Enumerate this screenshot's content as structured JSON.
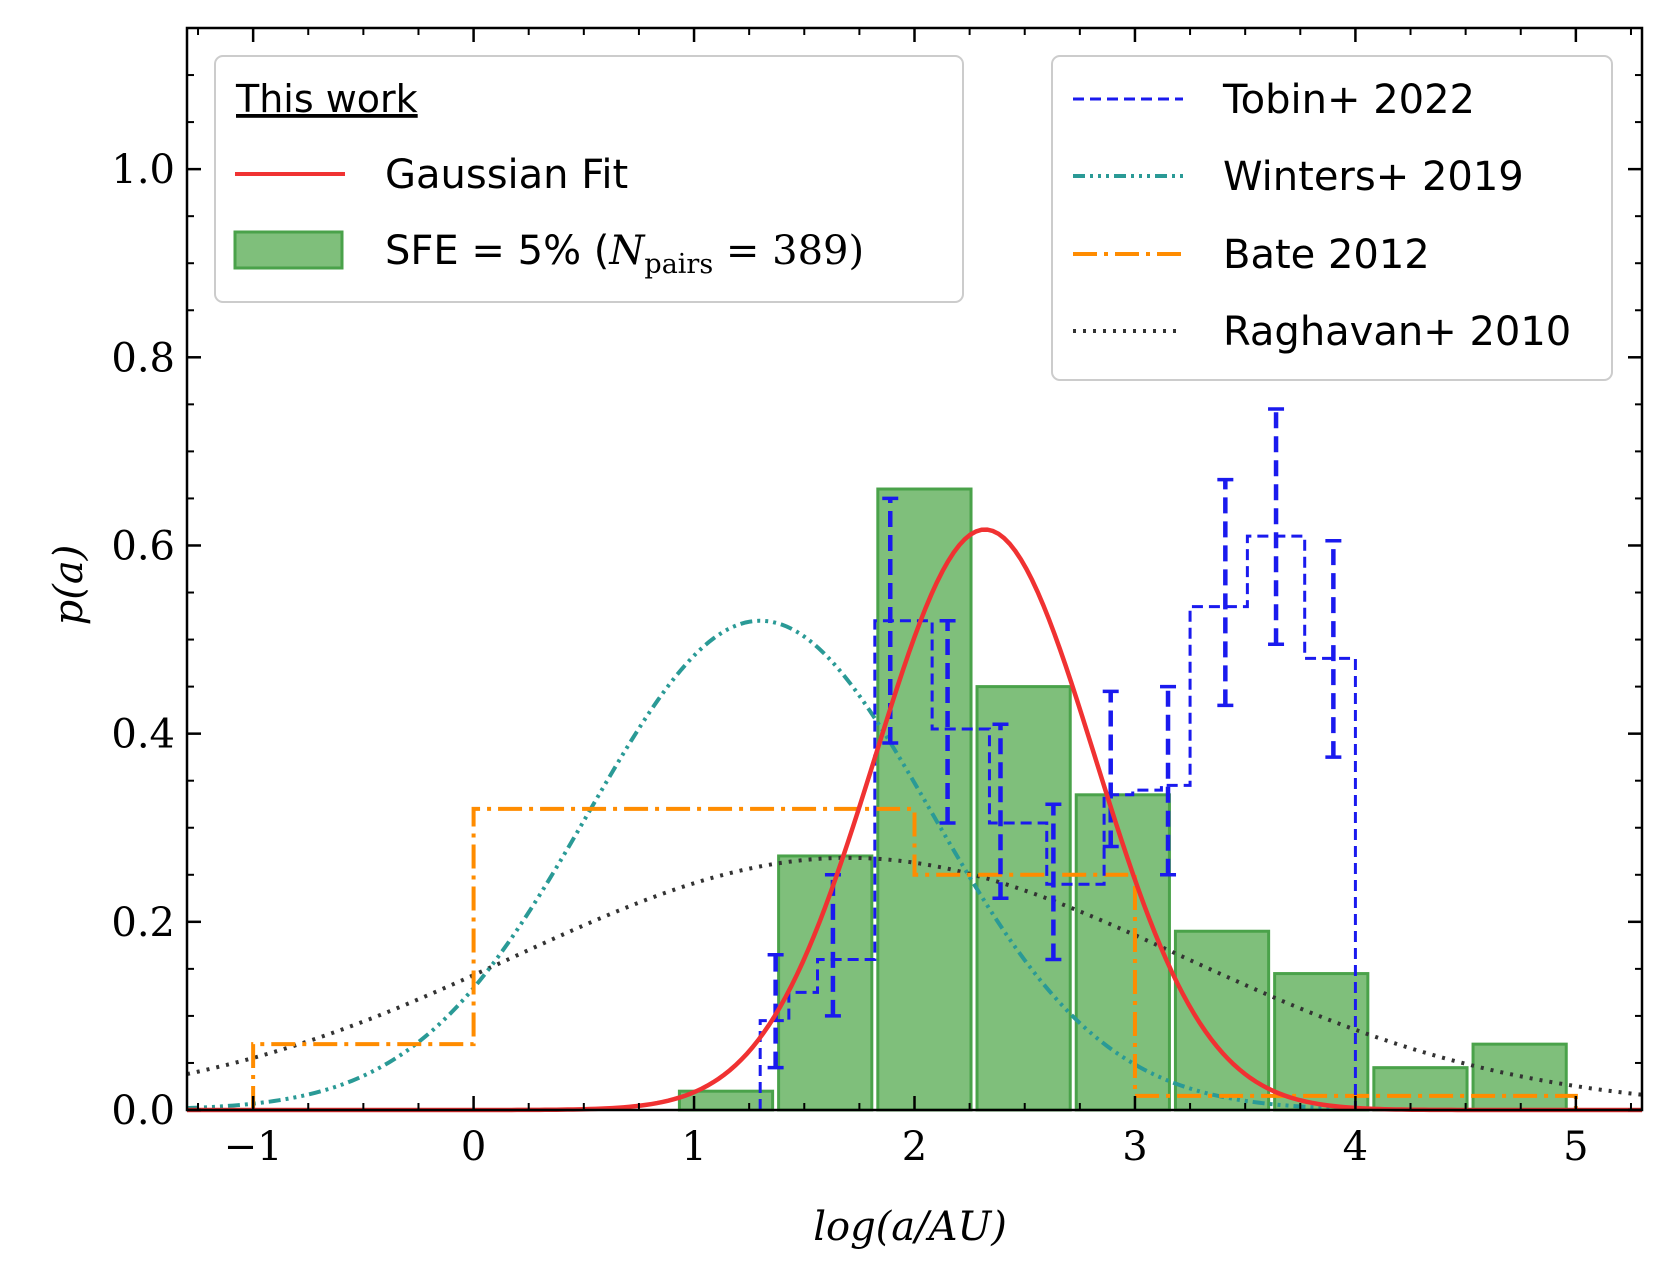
{
  "chart_data": {
    "type": "bar",
    "xlabel": "log(a/AU)",
    "ylabel": "p(a)",
    "xlim": [
      -1.3,
      5.3
    ],
    "ylim": [
      0.0,
      1.15
    ],
    "x_ticks": [
      -1,
      0,
      1,
      2,
      3,
      4,
      5
    ],
    "x_tick_labels": [
      "−1",
      "0",
      "1",
      "2",
      "3",
      "4",
      "5"
    ],
    "y_ticks": [
      0.0,
      0.2,
      0.4,
      0.6,
      0.8,
      1.0
    ],
    "y_tick_labels": [
      "0.0",
      "0.2",
      "0.4",
      "0.6",
      "0.8",
      "1.0"
    ],
    "colors": {
      "hist_fill": "#7fbf7b",
      "hist_edge": "#4aa24a",
      "gaussian": "#f03232",
      "tobin": "#1a1aee",
      "winters": "#2a9a96",
      "bate": "#ff8c00",
      "raghavan": "#333333"
    },
    "histogram": {
      "label_prefix": "SFE = 5% (",
      "label_n_symbol": "N",
      "label_n_sub": "pairs",
      "label_suffix": " = 389)",
      "bin_edges": [
        0.92,
        1.37,
        1.82,
        2.27,
        2.72,
        3.17,
        3.62,
        4.07,
        4.52,
        4.97
      ],
      "values": [
        0.02,
        0.27,
        0.66,
        0.45,
        0.335,
        0.19,
        0.145,
        0.045,
        0.07
      ]
    },
    "gaussian_fit": {
      "label": "Gaussian Fit",
      "peak": 0.617,
      "mean": 2.32,
      "sigma": 0.5
    },
    "tobin_2022": {
      "label": "Tobin+ 2022",
      "bin_edges": [
        1.3,
        1.43,
        1.56,
        1.69,
        1.82,
        1.95,
        2.08,
        2.21,
        2.34,
        2.47,
        2.6,
        2.73,
        2.86,
        2.99,
        3.12,
        3.25,
        3.38,
        3.51,
        3.64,
        3.77,
        3.9,
        4.0
      ],
      "values": [
        0.095,
        0.125,
        0.16,
        0.16,
        0.52,
        0.52,
        0.405,
        0.405,
        0.305,
        0.305,
        0.24,
        0.24,
        0.335,
        0.34,
        0.345,
        0.535,
        0.535,
        0.61,
        0.61,
        0.48,
        0.48
      ],
      "errorbars": [
        {
          "x": 1.37,
          "low": 0.045,
          "high": 0.165
        },
        {
          "x": 1.63,
          "low": 0.1,
          "high": 0.25
        },
        {
          "x": 1.89,
          "low": 0.39,
          "high": 0.65
        },
        {
          "x": 2.15,
          "low": 0.305,
          "high": 0.52
        },
        {
          "x": 2.39,
          "low": 0.225,
          "high": 0.41
        },
        {
          "x": 2.63,
          "low": 0.16,
          "high": 0.325
        },
        {
          "x": 2.89,
          "low": 0.28,
          "high": 0.445
        },
        {
          "x": 3.15,
          "low": 0.25,
          "high": 0.45
        },
        {
          "x": 3.41,
          "low": 0.43,
          "high": 0.67
        },
        {
          "x": 3.64,
          "low": 0.495,
          "high": 0.745
        },
        {
          "x": 3.9,
          "low": 0.375,
          "high": 0.605
        }
      ]
    },
    "winters_2019": {
      "label": "Winters+ 2019",
      "peak": 0.52,
      "mean": 1.3,
      "sigma": 0.78
    },
    "bate_2012": {
      "label": "Bate 2012",
      "bin_edges": [
        -1.0,
        0.0,
        2.0,
        3.0,
        5.0
      ],
      "values": [
        0.07,
        0.32,
        0.25,
        0.015
      ]
    },
    "raghavan_2010": {
      "label": "Raghavan+ 2010",
      "peak": 0.268,
      "mean": 1.7,
      "sigma": 1.52
    }
  },
  "legend_left": {
    "title": "This work"
  }
}
